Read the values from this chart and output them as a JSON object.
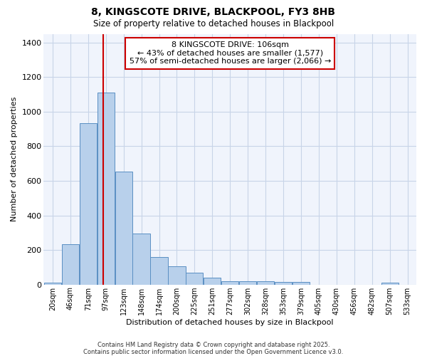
{
  "title1": "8, KINGSCOTE DRIVE, BLACKPOOL, FY3 8HB",
  "title2": "Size of property relative to detached houses in Blackpool",
  "xlabel": "Distribution of detached houses by size in Blackpool",
  "ylabel": "Number of detached properties",
  "categories": [
    "20sqm",
    "46sqm",
    "71sqm",
    "97sqm",
    "123sqm",
    "148sqm",
    "174sqm",
    "200sqm",
    "225sqm",
    "251sqm",
    "277sqm",
    "302sqm",
    "328sqm",
    "353sqm",
    "379sqm",
    "405sqm",
    "430sqm",
    "456sqm",
    "482sqm",
    "507sqm",
    "533sqm"
  ],
  "values": [
    10,
    235,
    935,
    1110,
    655,
    295,
    160,
    105,
    70,
    40,
    20,
    20,
    20,
    15,
    15,
    0,
    0,
    0,
    0,
    10,
    0
  ],
  "bar_color": "#b8d0eb",
  "bar_edge_color": "#5a8fc3",
  "grid_color": "#c8d4e8",
  "bg_color": "#ffffff",
  "plot_bg_color": "#f0f4fc",
  "vline_color": "#cc0000",
  "vline_x_index": 3,
  "annotation_title": "8 KINGSCOTE DRIVE: 106sqm",
  "annotation_line1": "← 43% of detached houses are smaller (1,577)",
  "annotation_line2": "57% of semi-detached houses are larger (2,066) →",
  "annotation_box_color": "#ffffff",
  "annotation_box_edge": "#cc0000",
  "footnote1": "Contains HM Land Registry data © Crown copyright and database right 2025.",
  "footnote2": "Contains public sector information licensed under the Open Government Licence v3.0.",
  "ylim": [
    0,
    1450
  ],
  "yticks": [
    0,
    200,
    400,
    600,
    800,
    1000,
    1200,
    1400
  ]
}
